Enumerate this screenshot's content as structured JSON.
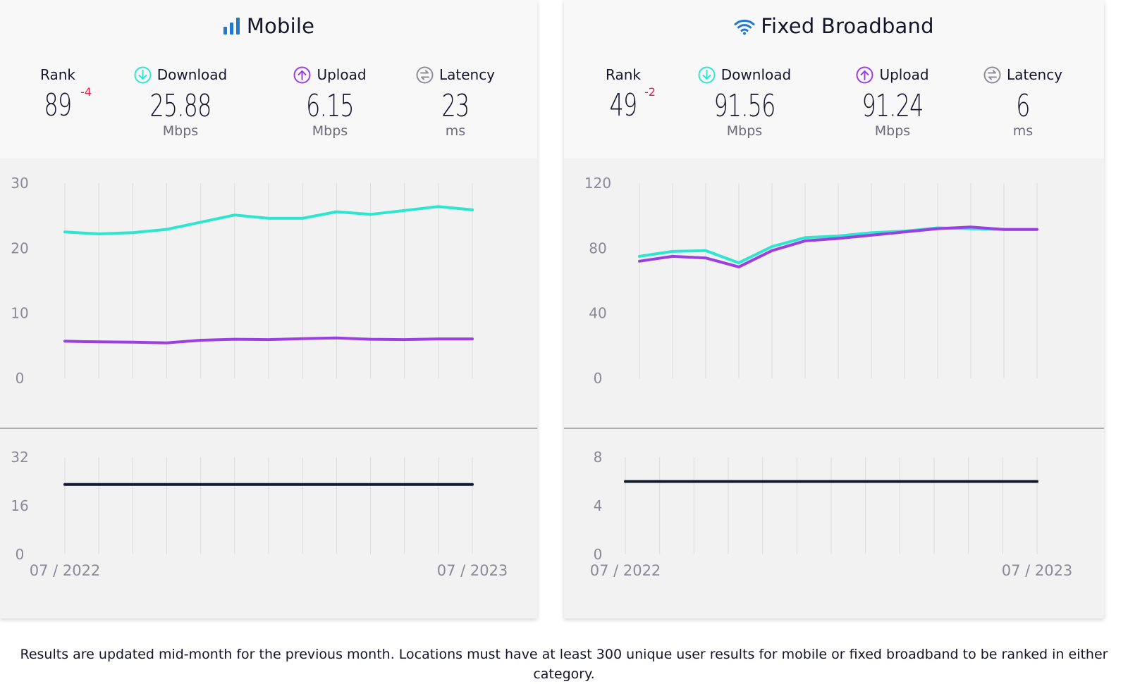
{
  "panels": [
    {
      "title": "Mobile",
      "icon": "signal-bars-icon",
      "rank": {
        "label": "Rank",
        "value": "89",
        "change": "-4"
      },
      "download": {
        "label": "Download",
        "value": "25.88",
        "unit": "Mbps"
      },
      "upload": {
        "label": "Upload",
        "value": "6.15",
        "unit": "Mbps"
      },
      "latency": {
        "label": "Latency",
        "value": "23",
        "unit": "ms"
      }
    },
    {
      "title": "Fixed Broadband",
      "icon": "wifi-icon",
      "rank": {
        "label": "Rank",
        "value": "49",
        "change": "-2"
      },
      "download": {
        "label": "Download",
        "value": "91.56",
        "unit": "Mbps"
      },
      "upload": {
        "label": "Upload",
        "value": "91.24",
        "unit": "Mbps"
      },
      "latency": {
        "label": "Latency",
        "value": "6",
        "unit": "ms"
      }
    }
  ],
  "colors": {
    "download": "#2ee6d0",
    "upload": "#9b3fe0",
    "latency": "#141a2e",
    "rank_change": "#e8194a",
    "download_icon": "#2ee6d0",
    "upload_icon": "#9b3fe0",
    "latency_icon": "#8e8e9a"
  },
  "chart_data": [
    {
      "type": "line",
      "panel": "Mobile",
      "x_start_label": "07 / 2022",
      "x_end_label": "07 / 2023",
      "speed": {
        "ylim": [
          0,
          30
        ],
        "yticks": [
          "0",
          "10",
          "20",
          "30"
        ],
        "grid": "vertical",
        "series": [
          {
            "key": "download",
            "values": [
              22.5,
              22.2,
              22.4,
              22.9,
              24.0,
              25.1,
              24.6,
              24.6,
              25.6,
              25.2,
              25.8,
              26.4,
              25.9
            ]
          },
          {
            "key": "upload",
            "values": [
              5.7,
              5.6,
              5.55,
              5.45,
              5.85,
              6.0,
              5.95,
              6.1,
              6.2,
              6.0,
              5.95,
              6.05,
              6.05
            ]
          }
        ]
      },
      "latency": {
        "ylim": [
          0,
          32
        ],
        "yticks": [
          "0",
          "16",
          "32"
        ],
        "series": [
          {
            "key": "latency",
            "values": [
              23,
              23,
              23,
              23,
              23,
              23,
              23,
              23,
              23,
              23,
              23,
              23,
              23
            ]
          }
        ]
      }
    },
    {
      "type": "line",
      "panel": "Fixed Broadband",
      "x_start_label": "07 / 2022",
      "x_end_label": "07 / 2023",
      "speed": {
        "ylim": [
          0,
          120
        ],
        "yticks": [
          "0",
          "40",
          "80",
          "120"
        ],
        "grid": "vertical",
        "series": [
          {
            "key": "download",
            "values": [
              75,
              78,
              78.5,
              71,
              81,
              86.5,
              87.5,
              89.5,
              90.5,
              92.5,
              92,
              91.5,
              91.5
            ]
          },
          {
            "key": "upload",
            "values": [
              72,
              75,
              74,
              68.5,
              78.5,
              84.5,
              86,
              88,
              90,
              92,
              93,
              91.5,
              91.5
            ]
          }
        ]
      },
      "latency": {
        "ylim": [
          0,
          8
        ],
        "yticks": [
          "0",
          "4",
          "8"
        ],
        "series": [
          {
            "key": "latency",
            "values": [
              6,
              6,
              6,
              6,
              6,
              6,
              6,
              6,
              6,
              6,
              6,
              6,
              6
            ]
          }
        ]
      }
    }
  ],
  "footer": {
    "note": "Results are updated mid-month for the previous month. Locations must have at least 300 unique user results for mobile or fixed broadband to be ranked in either category."
  }
}
